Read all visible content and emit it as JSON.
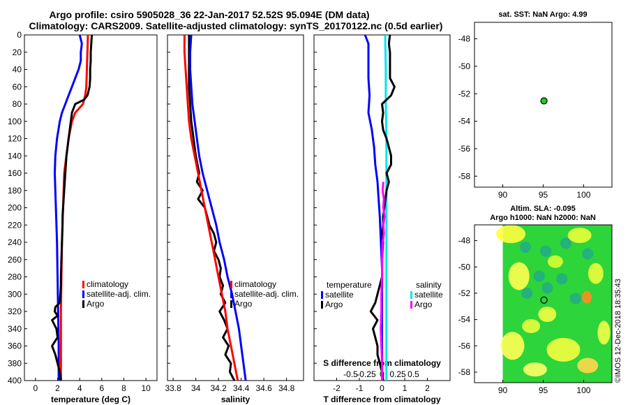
{
  "title_line1": "Argo profile: csiro 5905028_36 22-Jan-2017 52.52S 95.094E (DM data)",
  "title_line2": "Climatology: CARS2009. Satellite-adjusted climatology: synTS_20170122.nc (0.5d earlier)",
  "credit": "©IMOS 12-Dec-2018 18:35:43",
  "colors": {
    "climatology": "#ff0000",
    "satellite": "#0000ff",
    "argo": "#000000",
    "salinity_satellite": "#00e5ee",
    "salinity_argo": "#ff00ff",
    "float_marker": "#22cc22"
  },
  "depth_axis": {
    "ticks": [
      "0",
      "20",
      "40",
      "60",
      "80",
      "100",
      "120",
      "140",
      "160",
      "180",
      "200",
      "220",
      "240",
      "260",
      "280",
      "300",
      "320",
      "340",
      "360",
      "380",
      "400"
    ],
    "range": [
      0,
      400
    ]
  },
  "chart_data": [
    {
      "type": "line",
      "id": "temperature",
      "xlabel": "temperature (deg C)",
      "xlim": [
        -1,
        11
      ],
      "xticks": [
        "0",
        "2",
        "4",
        "6",
        "8",
        "10"
      ],
      "legend": [
        "climatology",
        "satellite-adj. clim.",
        "Argo"
      ],
      "series": [
        {
          "name": "climatology",
          "depth": [
            0,
            20,
            40,
            60,
            70,
            80,
            90,
            100,
            120,
            140,
            160,
            180,
            200,
            240,
            280,
            320,
            360,
            400
          ],
          "values": [
            4.75,
            4.7,
            4.65,
            4.6,
            4.5,
            4.3,
            3.6,
            3.3,
            3.0,
            2.8,
            2.6,
            2.55,
            2.5,
            2.4,
            2.35,
            2.3,
            2.3,
            2.3
          ]
        },
        {
          "name": "satellite-adj. clim.",
          "depth": [
            0,
            10,
            20,
            30,
            40,
            50,
            60,
            70,
            80,
            90,
            100,
            120,
            140,
            160,
            180,
            200,
            240,
            280,
            320,
            360,
            400
          ],
          "values": [
            4.0,
            4.2,
            4.1,
            4.1,
            3.9,
            3.6,
            3.3,
            3.0,
            2.7,
            2.4,
            2.2,
            1.95,
            1.8,
            1.75,
            1.8,
            1.85,
            1.95,
            2.0,
            2.05,
            2.1,
            2.1
          ]
        },
        {
          "name": "Argo",
          "depth": [
            0,
            10,
            20,
            30,
            40,
            50,
            60,
            70,
            75,
            80,
            90,
            100,
            110,
            120,
            130,
            140,
            150,
            160,
            170,
            180,
            190,
            200,
            210,
            220,
            240,
            260,
            280,
            290,
            300,
            310,
            315,
            320,
            325,
            330,
            340,
            350,
            360,
            370,
            380,
            390,
            400
          ],
          "values": [
            5.1,
            5.05,
            5.0,
            5.0,
            4.95,
            4.95,
            4.9,
            4.7,
            4.4,
            3.6,
            3.3,
            3.2,
            3.1,
            3.0,
            2.9,
            2.8,
            2.75,
            2.7,
            2.65,
            2.6,
            2.55,
            2.5,
            2.45,
            2.45,
            2.4,
            2.35,
            2.3,
            2.3,
            2.25,
            2.2,
            1.8,
            1.75,
            2.0,
            1.5,
            1.9,
            2.0,
            1.5,
            1.8,
            2.0,
            2.2,
            2.3
          ]
        }
      ]
    },
    {
      "type": "line",
      "id": "salinity",
      "xlabel": "salinity",
      "xlim": [
        33.75,
        34.95
      ],
      "xticks": [
        "33.8",
        "34",
        "34.2",
        "34.4",
        "34.6",
        "34.8"
      ],
      "legend": [
        "climatology",
        "satellite-adj. clim.",
        "Argo"
      ],
      "series": [
        {
          "name": "climatology",
          "depth": [
            0,
            20,
            40,
            60,
            80,
            100,
            120,
            140,
            160,
            180,
            200,
            220,
            240,
            260,
            280,
            300,
            320,
            340,
            360,
            380,
            400
          ],
          "values": [
            33.9,
            33.9,
            33.91,
            33.92,
            33.93,
            33.94,
            33.96,
            33.99,
            34.02,
            34.05,
            34.08,
            34.11,
            34.14,
            34.17,
            34.2,
            34.23,
            34.26,
            34.28,
            34.31,
            34.34,
            34.37
          ]
        },
        {
          "name": "satellite-adj. clim.",
          "depth": [
            0,
            20,
            40,
            60,
            80,
            100,
            120,
            140,
            160,
            180,
            200,
            220,
            240,
            260,
            280,
            300,
            320,
            340,
            360,
            380,
            400
          ],
          "values": [
            33.96,
            33.95,
            33.95,
            33.96,
            33.97,
            33.99,
            34.01,
            34.03,
            34.06,
            34.1,
            34.14,
            34.18,
            34.21,
            34.25,
            34.28,
            34.32,
            34.35,
            34.38,
            34.4,
            34.42,
            34.44
          ]
        },
        {
          "name": "Argo",
          "depth": [
            0,
            20,
            40,
            60,
            80,
            100,
            120,
            140,
            160,
            170,
            180,
            190,
            200,
            210,
            220,
            230,
            240,
            250,
            260,
            270,
            280,
            290,
            300,
            310,
            320,
            330,
            340,
            350,
            360,
            370,
            380,
            390,
            400
          ],
          "values": [
            33.94,
            33.94,
            33.94,
            33.94,
            33.95,
            33.96,
            33.98,
            34.0,
            34.03,
            34.01,
            34.06,
            34.02,
            34.08,
            34.1,
            34.12,
            34.16,
            34.18,
            34.16,
            34.2,
            34.22,
            34.21,
            34.24,
            34.22,
            34.26,
            34.21,
            34.25,
            34.28,
            34.24,
            34.29,
            34.26,
            34.31,
            34.3,
            34.34
          ]
        }
      ]
    },
    {
      "type": "line",
      "id": "difference",
      "xlabel": "T difference from climatology",
      "s_axis_label": "S difference from climatology",
      "xlim": [
        -3,
        3
      ],
      "xticks": [
        "-2",
        "-1",
        "0",
        "1",
        "2"
      ],
      "s_ticks": [
        "-0.5",
        "-0.25",
        "0",
        "0.25",
        "0.5"
      ],
      "legend_temperature_title": "temperature",
      "legend_salinity_title": "salinity",
      "legend_temperature": [
        "satellite",
        "Argo"
      ],
      "legend_salinity": [
        "satellite",
        "Argo"
      ],
      "series": [
        {
          "name": "temperature satellite",
          "depth": [
            0,
            10,
            30,
            50,
            70,
            90,
            110,
            130,
            150,
            170,
            190,
            210,
            240,
            270,
            300,
            330,
            360,
            380,
            400
          ],
          "values": [
            -0.75,
            -0.6,
            -0.6,
            -0.6,
            -0.55,
            -0.6,
            -0.45,
            -0.35,
            -0.3,
            -0.2,
            -0.15,
            -0.1,
            -0.05,
            0.0,
            0.0,
            0.0,
            0.0,
            0.0,
            0.0
          ]
        },
        {
          "name": "temperature Argo",
          "depth": [
            0,
            10,
            20,
            30,
            40,
            50,
            60,
            70,
            80,
            90,
            100,
            110,
            120,
            130,
            140,
            150,
            160,
            170,
            180,
            190,
            200,
            210,
            220,
            230,
            240,
            260,
            280,
            300,
            310,
            320,
            330,
            340,
            350,
            360,
            370,
            380,
            390,
            400
          ],
          "values": [
            0.35,
            0.3,
            0.35,
            0.35,
            0.35,
            0.35,
            0.55,
            0.4,
            0.0,
            0.05,
            0.0,
            0.05,
            0.2,
            0.3,
            0.4,
            0.4,
            0.2,
            0.3,
            0.2,
            0.15,
            0.1,
            0.05,
            0.05,
            0.0,
            0.05,
            0.0,
            0.0,
            -0.2,
            -0.3,
            -0.5,
            -0.2,
            -0.4,
            -0.3,
            -0.2,
            -0.2,
            -0.1,
            0.0,
            0.05
          ]
        },
        {
          "name": "salinity satellite",
          "depth": [
            0,
            40,
            80,
            120,
            160,
            200,
            240,
            280,
            320,
            360,
            400
          ],
          "values": [
            0.05,
            0.06,
            0.06,
            0.07,
            0.07,
            0.07,
            0.07,
            0.07,
            0.07,
            0.07,
            0.07
          ]
        },
        {
          "name": "salinity Argo",
          "depth": [
            170,
            180,
            190,
            200,
            210,
            220,
            230,
            240,
            260,
            280,
            300,
            320,
            340,
            360,
            380,
            400
          ],
          "values": [
            0.02,
            0.01,
            0.03,
            0.02,
            0.04,
            0.02,
            0.03,
            0.01,
            0.0,
            0.0,
            -0.01,
            -0.01,
            -0.02,
            -0.01,
            0.0,
            0.0
          ]
        }
      ]
    },
    {
      "type": "scatter",
      "id": "sst_map",
      "title": "sat. SST: NaN Argo: 4.99",
      "xlim": [
        86.5,
        103.5
      ],
      "ylim": [
        -58.8,
        -46.8
      ],
      "xticks": [
        "90",
        "95",
        "100"
      ],
      "yticks": [
        "-48",
        "-50",
        "-52",
        "-54",
        "-56",
        "-58"
      ],
      "points": [
        {
          "lon": 95.094,
          "lat": -52.52
        }
      ]
    },
    {
      "type": "heatmap",
      "id": "sla_map",
      "title": "Altim. SLA: -0.095",
      "subtitle": "Argo h1000: NaN h2000: NaN",
      "xlim": [
        86.5,
        103.5
      ],
      "ylim": [
        -58.8,
        -46.8
      ],
      "xticks": [
        "90",
        "95",
        "100"
      ],
      "yticks": [
        "-48",
        "-50",
        "-52",
        "-54",
        "-56",
        "-58"
      ],
      "points": [
        {
          "lon": 95.094,
          "lat": -52.52
        }
      ]
    }
  ]
}
